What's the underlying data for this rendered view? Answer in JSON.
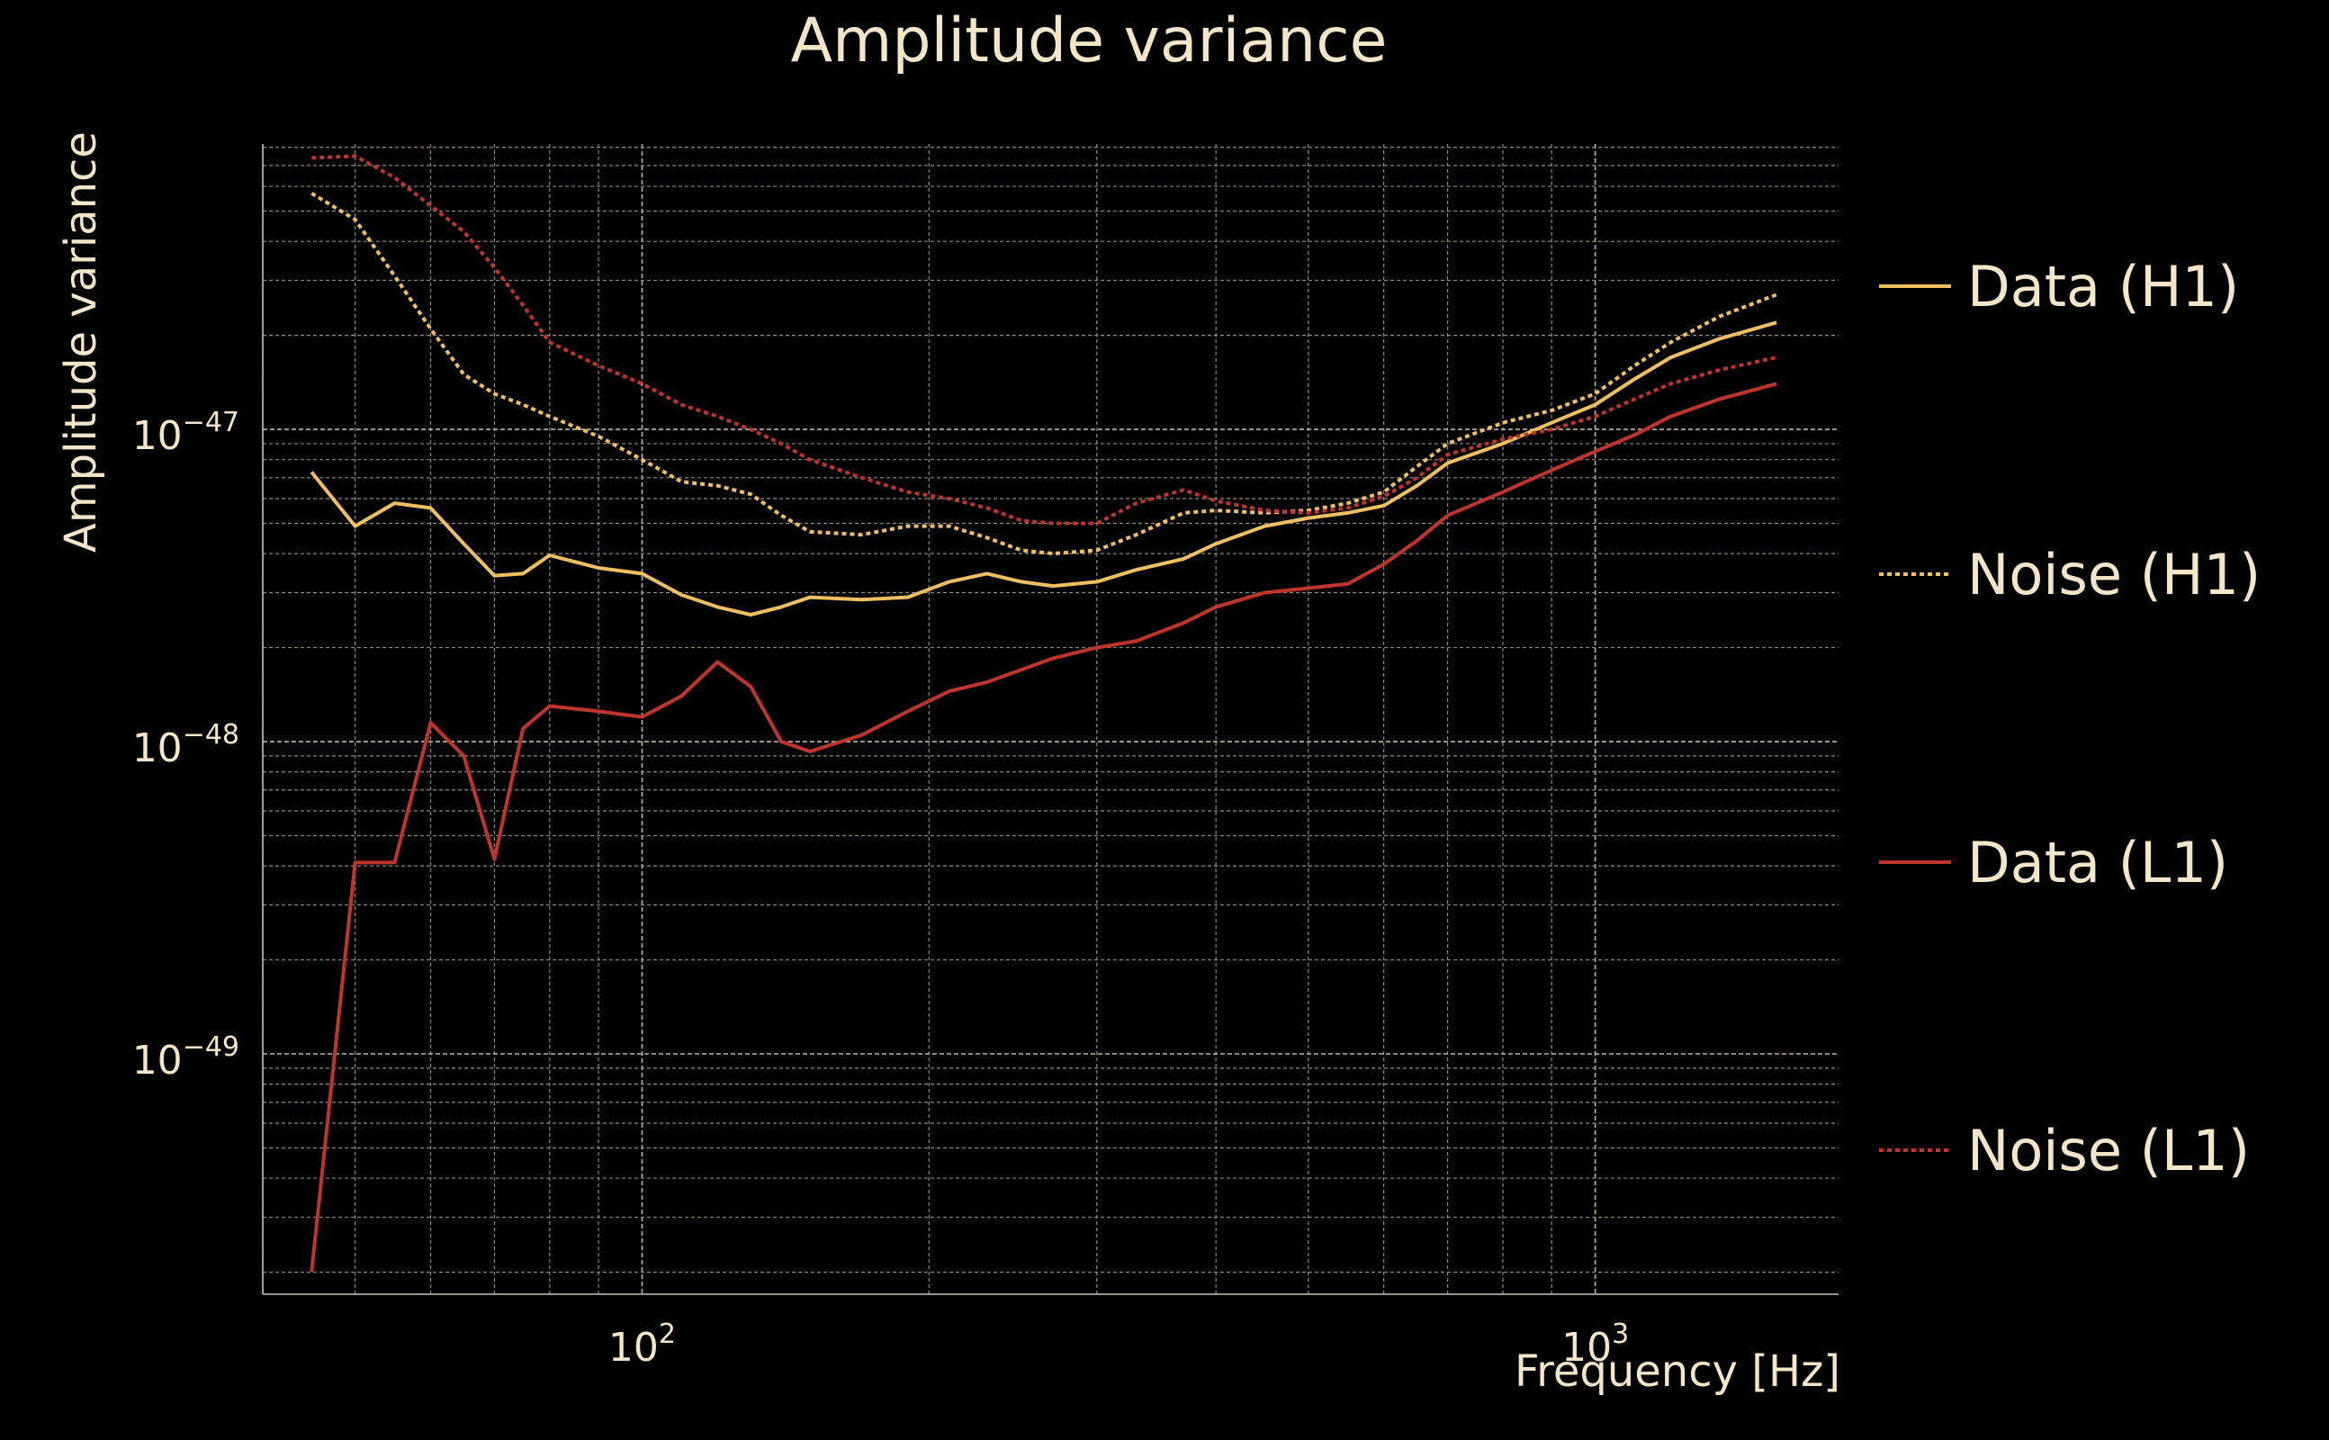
{
  "chart_data": {
    "type": "line",
    "title": "Amplitude variance",
    "xlabel": "Frequency [Hz]",
    "ylabel": "Amplitude variance",
    "xscale": "log",
    "yscale": "log",
    "xlim": [
      40,
      1800
    ],
    "ylim": [
      1.7e-50,
      8.2e-47
    ],
    "grid": true,
    "legend_position": "right",
    "x_ticks": [
      {
        "value": 100,
        "base": "10",
        "exp": "2"
      },
      {
        "value": 1000,
        "base": "10",
        "exp": "3"
      }
    ],
    "y_ticks": [
      {
        "value": 1e-49,
        "base": "10",
        "exp": "−49"
      },
      {
        "value": 1e-48,
        "base": "10",
        "exp": "−48"
      },
      {
        "value": 1e-47,
        "base": "10",
        "exp": "−47"
      }
    ],
    "x": [
      45,
      50,
      55,
      60,
      65,
      70,
      75,
      80,
      90,
      100,
      110,
      120,
      130,
      140,
      150,
      170,
      190,
      210,
      230,
      250,
      270,
      300,
      330,
      370,
      400,
      450,
      500,
      550,
      600,
      650,
      700,
      800,
      900,
      1000,
      1100,
      1200,
      1350,
      1550
    ],
    "series": [
      {
        "name": "Data (H1)",
        "color": "#f0c060",
        "dash": "solid",
        "values": [
          7.3e-48,
          4.9e-48,
          5.8e-48,
          5.6e-48,
          4.3e-48,
          3.4e-48,
          3.45e-48,
          3.95e-48,
          3.6e-48,
          3.45e-48,
          2.95e-48,
          2.7e-48,
          2.55e-48,
          2.7e-48,
          2.9e-48,
          2.85e-48,
          2.9e-48,
          3.25e-48,
          3.45e-48,
          3.25e-48,
          3.15e-48,
          3.25e-48,
          3.55e-48,
          3.85e-48,
          4.3e-48,
          4.9e-48,
          5.2e-48,
          5.4e-48,
          5.7e-48,
          6.6e-48,
          7.8e-48,
          9e-48,
          1.05e-47,
          1.2e-47,
          1.45e-47,
          1.7e-47,
          1.95e-47,
          2.2e-47
        ]
      },
      {
        "name": "Noise (H1)",
        "color": "#f0c060",
        "dash": "dotted",
        "values": [
          5.7e-47,
          4.7e-47,
          3.1e-47,
          2.1e-47,
          1.5e-47,
          1.3e-47,
          1.2e-47,
          1.1e-47,
          9.5e-48,
          8e-48,
          6.8e-48,
          6.6e-48,
          6.2e-48,
          5.3e-48,
          4.7e-48,
          4.6e-48,
          4.9e-48,
          4.9e-48,
          4.5e-48,
          4.1e-48,
          4e-48,
          4.1e-48,
          4.6e-48,
          5.4e-48,
          5.5e-48,
          5.4e-48,
          5.5e-48,
          5.8e-48,
          6.3e-48,
          7.6e-48,
          9e-48,
          1.05e-47,
          1.15e-47,
          1.3e-47,
          1.6e-47,
          1.9e-47,
          2.3e-47,
          2.7e-47
        ]
      },
      {
        "name": "Data (L1)",
        "color": "#c0352b",
        "dash": "solid",
        "values": [
          2e-50,
          4.1e-49,
          4.1e-49,
          1.15e-48,
          9e-49,
          4.2e-49,
          1.1e-48,
          1.3e-48,
          1.25e-48,
          1.2e-48,
          1.4e-48,
          1.8e-48,
          1.5e-48,
          1e-48,
          9.3e-49,
          1.05e-48,
          1.25e-48,
          1.45e-48,
          1.55e-48,
          1.7e-48,
          1.85e-48,
          2e-48,
          2.1e-48,
          2.4e-48,
          2.7e-48,
          3e-48,
          3.1e-48,
          3.2e-48,
          3.7e-48,
          4.4e-48,
          5.3e-48,
          6.3e-48,
          7.4e-48,
          8.5e-48,
          9.6e-48,
          1.1e-47,
          1.25e-47,
          1.4e-47
        ]
      },
      {
        "name": "Noise (L1)",
        "color": "#c0352b",
        "dash": "dotted",
        "values": [
          7.4e-47,
          7.5e-47,
          6.4e-47,
          5.2e-47,
          4.3e-47,
          3.3e-47,
          2.5e-47,
          1.9e-47,
          1.6e-47,
          1.4e-47,
          1.2e-47,
          1.1e-47,
          1e-47,
          9e-48,
          8e-48,
          7e-48,
          6.3e-48,
          6e-48,
          5.6e-48,
          5.1e-48,
          5e-48,
          5e-48,
          5.8e-48,
          6.4e-48,
          5.9e-48,
          5.5e-48,
          5.4e-48,
          5.6e-48,
          6.1e-48,
          7e-48,
          8.3e-48,
          9.3e-48,
          1e-47,
          1.1e-47,
          1.25e-47,
          1.4e-47,
          1.55e-47,
          1.7e-47
        ]
      }
    ]
  }
}
